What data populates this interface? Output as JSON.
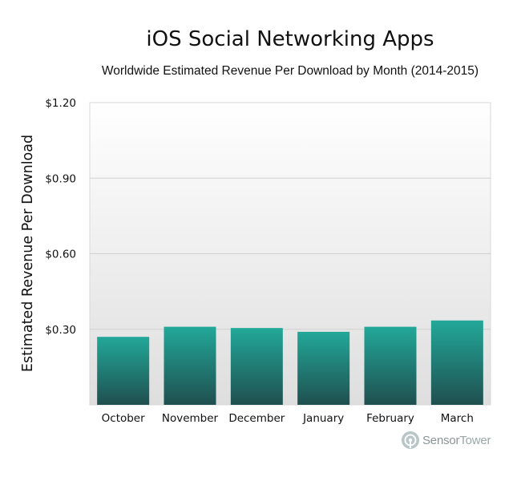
{
  "chart_data": {
    "type": "bar",
    "title": "iOS Social Networking Apps",
    "subtitle": "Worldwide Estimated Revenue Per Download by Month (2014-2015)",
    "xlabel": "",
    "ylabel": "Estimated Revenue Per Download",
    "categories": [
      "October",
      "November",
      "December",
      "January",
      "February",
      "March"
    ],
    "values": [
      0.27,
      0.31,
      0.305,
      0.29,
      0.31,
      0.335
    ],
    "ylim": [
      0,
      1.2
    ],
    "yticks": [
      0.3,
      0.6,
      0.9,
      1.2
    ],
    "ytick_labels": [
      "$0.30",
      "$0.60",
      "$0.90",
      "$1.20"
    ],
    "grid": true,
    "bar_color_top": "#22a899",
    "bar_color_bottom": "#1f4f4f"
  },
  "watermark": {
    "brand_a": "Sensor",
    "brand_b": "Tower",
    "icon": "sensor-tower-logo-icon"
  }
}
